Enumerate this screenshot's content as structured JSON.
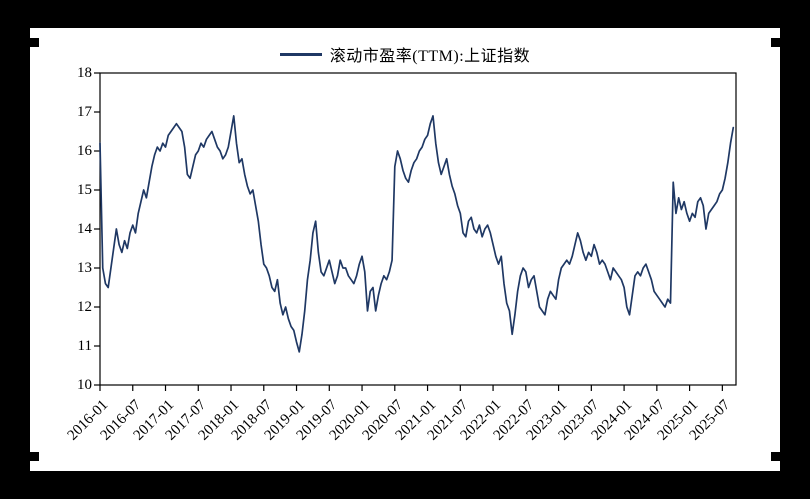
{
  "frame": {
    "background": "#000000",
    "panel_background": "#ffffff"
  },
  "chart_data": {
    "type": "line",
    "title": "",
    "legend": "滚动市盈率(TTM):上证指数",
    "line_color": "#1f3864",
    "axis_color": "#000000",
    "ylim": [
      10,
      18
    ],
    "y_ticks": [
      10,
      11,
      12,
      13,
      14,
      15,
      16,
      17,
      18
    ],
    "x_ticks": [
      "2016-01",
      "2016-07",
      "2017-01",
      "2017-07",
      "2018-01",
      "2018-07",
      "2019-01",
      "2019-07",
      "2020-01",
      "2020-07",
      "2021-01",
      "2021-07",
      "2022-01",
      "2022-07",
      "2023-01",
      "2023-07",
      "2024-01",
      "2024-07",
      "2025-01",
      "2025-07"
    ],
    "x_tick_interval_months": 6,
    "x_span_months": 116.5,
    "points_per_month": 2,
    "start": "2016-01",
    "grid": false,
    "legend_position": "top-center",
    "values": [
      16.2,
      13.0,
      12.6,
      12.5,
      13.0,
      13.5,
      14.0,
      13.6,
      13.4,
      13.7,
      13.5,
      13.9,
      14.1,
      13.9,
      14.4,
      14.7,
      15.0,
      14.8,
      15.2,
      15.6,
      15.9,
      16.1,
      16.0,
      16.2,
      16.1,
      16.4,
      16.5,
      16.6,
      16.7,
      16.6,
      16.5,
      16.1,
      15.4,
      15.3,
      15.6,
      15.9,
      16.0,
      16.2,
      16.1,
      16.3,
      16.4,
      16.5,
      16.3,
      16.1,
      16.0,
      15.8,
      15.9,
      16.1,
      16.5,
      16.9,
      16.2,
      15.7,
      15.8,
      15.4,
      15.1,
      14.9,
      15.0,
      14.6,
      14.2,
      13.6,
      13.1,
      13.0,
      12.8,
      12.5,
      12.4,
      12.7,
      12.1,
      11.8,
      12.0,
      11.7,
      11.5,
      11.4,
      11.1,
      10.85,
      11.3,
      11.9,
      12.7,
      13.2,
      13.9,
      14.2,
      13.4,
      12.9,
      12.8,
      13.0,
      13.2,
      12.9,
      12.6,
      12.8,
      13.2,
      13.0,
      13.0,
      12.8,
      12.7,
      12.6,
      12.8,
      13.1,
      13.3,
      12.9,
      11.9,
      12.4,
      12.5,
      11.9,
      12.3,
      12.6,
      12.8,
      12.7,
      12.9,
      13.2,
      15.6,
      16.0,
      15.8,
      15.5,
      15.3,
      15.2,
      15.5,
      15.7,
      15.8,
      16.0,
      16.1,
      16.3,
      16.4,
      16.7,
      16.9,
      16.2,
      15.7,
      15.4,
      15.6,
      15.8,
      15.4,
      15.1,
      14.9,
      14.6,
      14.4,
      13.9,
      13.8,
      14.2,
      14.3,
      14.0,
      13.9,
      14.1,
      13.8,
      14.0,
      14.1,
      13.9,
      13.6,
      13.3,
      13.1,
      13.3,
      12.6,
      12.1,
      11.9,
      11.3,
      11.8,
      12.4,
      12.8,
      13.0,
      12.9,
      12.5,
      12.7,
      12.8,
      12.4,
      12.0,
      11.9,
      11.8,
      12.2,
      12.4,
      12.3,
      12.2,
      12.7,
      13.0,
      13.1,
      13.2,
      13.1,
      13.3,
      13.6,
      13.9,
      13.7,
      13.4,
      13.2,
      13.4,
      13.3,
      13.6,
      13.4,
      13.1,
      13.2,
      13.1,
      12.9,
      12.7,
      13.0,
      12.9,
      12.8,
      12.7,
      12.5,
      12.0,
      11.8,
      12.3,
      12.8,
      12.9,
      12.8,
      13.0,
      13.1,
      12.9,
      12.7,
      12.4,
      12.3,
      12.2,
      12.1,
      12.0,
      12.2,
      12.1,
      15.2,
      14.4,
      14.8,
      14.5,
      14.7,
      14.4,
      14.2,
      14.4,
      14.3,
      14.7,
      14.8,
      14.6,
      14.0,
      14.4,
      14.5,
      14.6,
      14.7,
      14.9,
      15.0,
      15.3,
      15.7,
      16.2,
      16.6
    ]
  }
}
